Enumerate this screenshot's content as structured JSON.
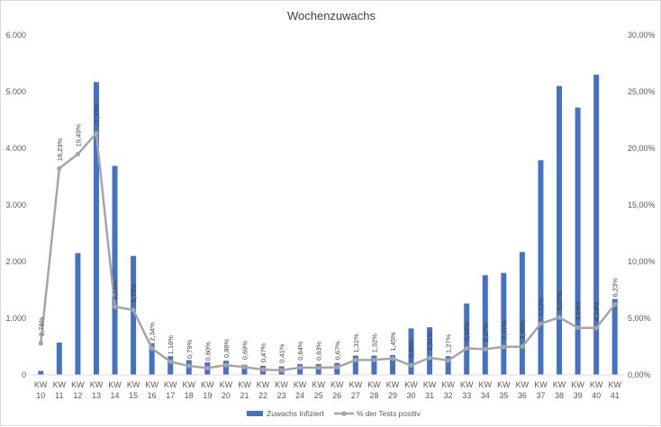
{
  "chart_data": {
    "type": "bar",
    "title": "Wochenzuwachs",
    "categories": [
      "KW 10",
      "KW 11",
      "KW 12",
      "KW 13",
      "KW 14",
      "KW 15",
      "KW 16",
      "KW 17",
      "KW 18",
      "KW 19",
      "KW 20",
      "KW 21",
      "KW 22",
      "KW 23",
      "KW 24",
      "KW 25",
      "KW 26",
      "KW 27",
      "KW 28",
      "KW 29",
      "KW 30",
      "KW 31",
      "KW 32",
      "KW 33",
      "KW 34",
      "KW 35",
      "KW 36",
      "KW 37",
      "KW 38",
      "KW 39",
      "KW 40",
      "KW 41"
    ],
    "series": [
      {
        "name": "Zuwachs Infiziert",
        "type": "bar",
        "axis": "left",
        "color": "#4472C4",
        "values": [
          70,
          570,
          2150,
          5170,
          3690,
          2100,
          560,
          330,
          260,
          220,
          250,
          180,
          160,
          150,
          190,
          190,
          210,
          340,
          340,
          350,
          820,
          840,
          330,
          1260,
          1760,
          1800,
          2170,
          3790,
          5100,
          4720,
          5300,
          1340
        ]
      },
      {
        "name": "% der Tests positiv",
        "type": "line",
        "axis": "right",
        "color": "#A5A5A5",
        "values": [
          2.78,
          18.23,
          19.49,
          21.33,
          6.01,
          5.73,
          2.34,
          1.16,
          0.79,
          0.6,
          0.86,
          0.69,
          0.47,
          0.41,
          0.64,
          0.63,
          0.67,
          1.31,
          1.32,
          1.45,
          0.84,
          1.51,
          1.27,
          2.34,
          2.27,
          2.47,
          2.49,
          4.52,
          5.07,
          4.16,
          4.14,
          6.23
        ],
        "labels": [
          "2,78%",
          "18,23%",
          "19,49%",
          "21,33%",
          "6,01%",
          "5,73%",
          "2,34%",
          "1,16%",
          "0,79%",
          "0,60%",
          "0,86%",
          "0,69%",
          "0,47%",
          "0,41%",
          "0,64%",
          "0,63%",
          "0,67%",
          "1,31%",
          "1,32%",
          "1,45%",
          "0,84%",
          "1,51%",
          "1,27%",
          "2,34%",
          "2,27%",
          "2,47%",
          "2,49%",
          "4,52%",
          "5,07%",
          "4,16%",
          "4,14%",
          "6,23%"
        ]
      }
    ],
    "y_left": {
      "ylim": [
        0,
        6000
      ],
      "ticks": [
        0,
        1000,
        2000,
        3000,
        4000,
        5000,
        6000
      ],
      "tick_labels": [
        "0",
        "1.000",
        "2.000",
        "3.000",
        "4.000",
        "5.000",
        "6.000"
      ]
    },
    "y_right": {
      "ylim": [
        0,
        30
      ],
      "ticks": [
        0,
        5,
        10,
        15,
        20,
        25,
        30
      ],
      "tick_labels": [
        "0,00%",
        "5,00%",
        "10,00%",
        "15,00%",
        "20,00%",
        "25,00%",
        "30,00%"
      ]
    },
    "grid": false,
    "legend": {
      "position": "bottom",
      "entries": [
        "Zuwachs Infiziert",
        "% der Tests positiv"
      ]
    },
    "colors": {
      "bar": "#4472C4",
      "line": "#A5A5A5",
      "axis_text": "#595959",
      "title": "#404040"
    }
  }
}
